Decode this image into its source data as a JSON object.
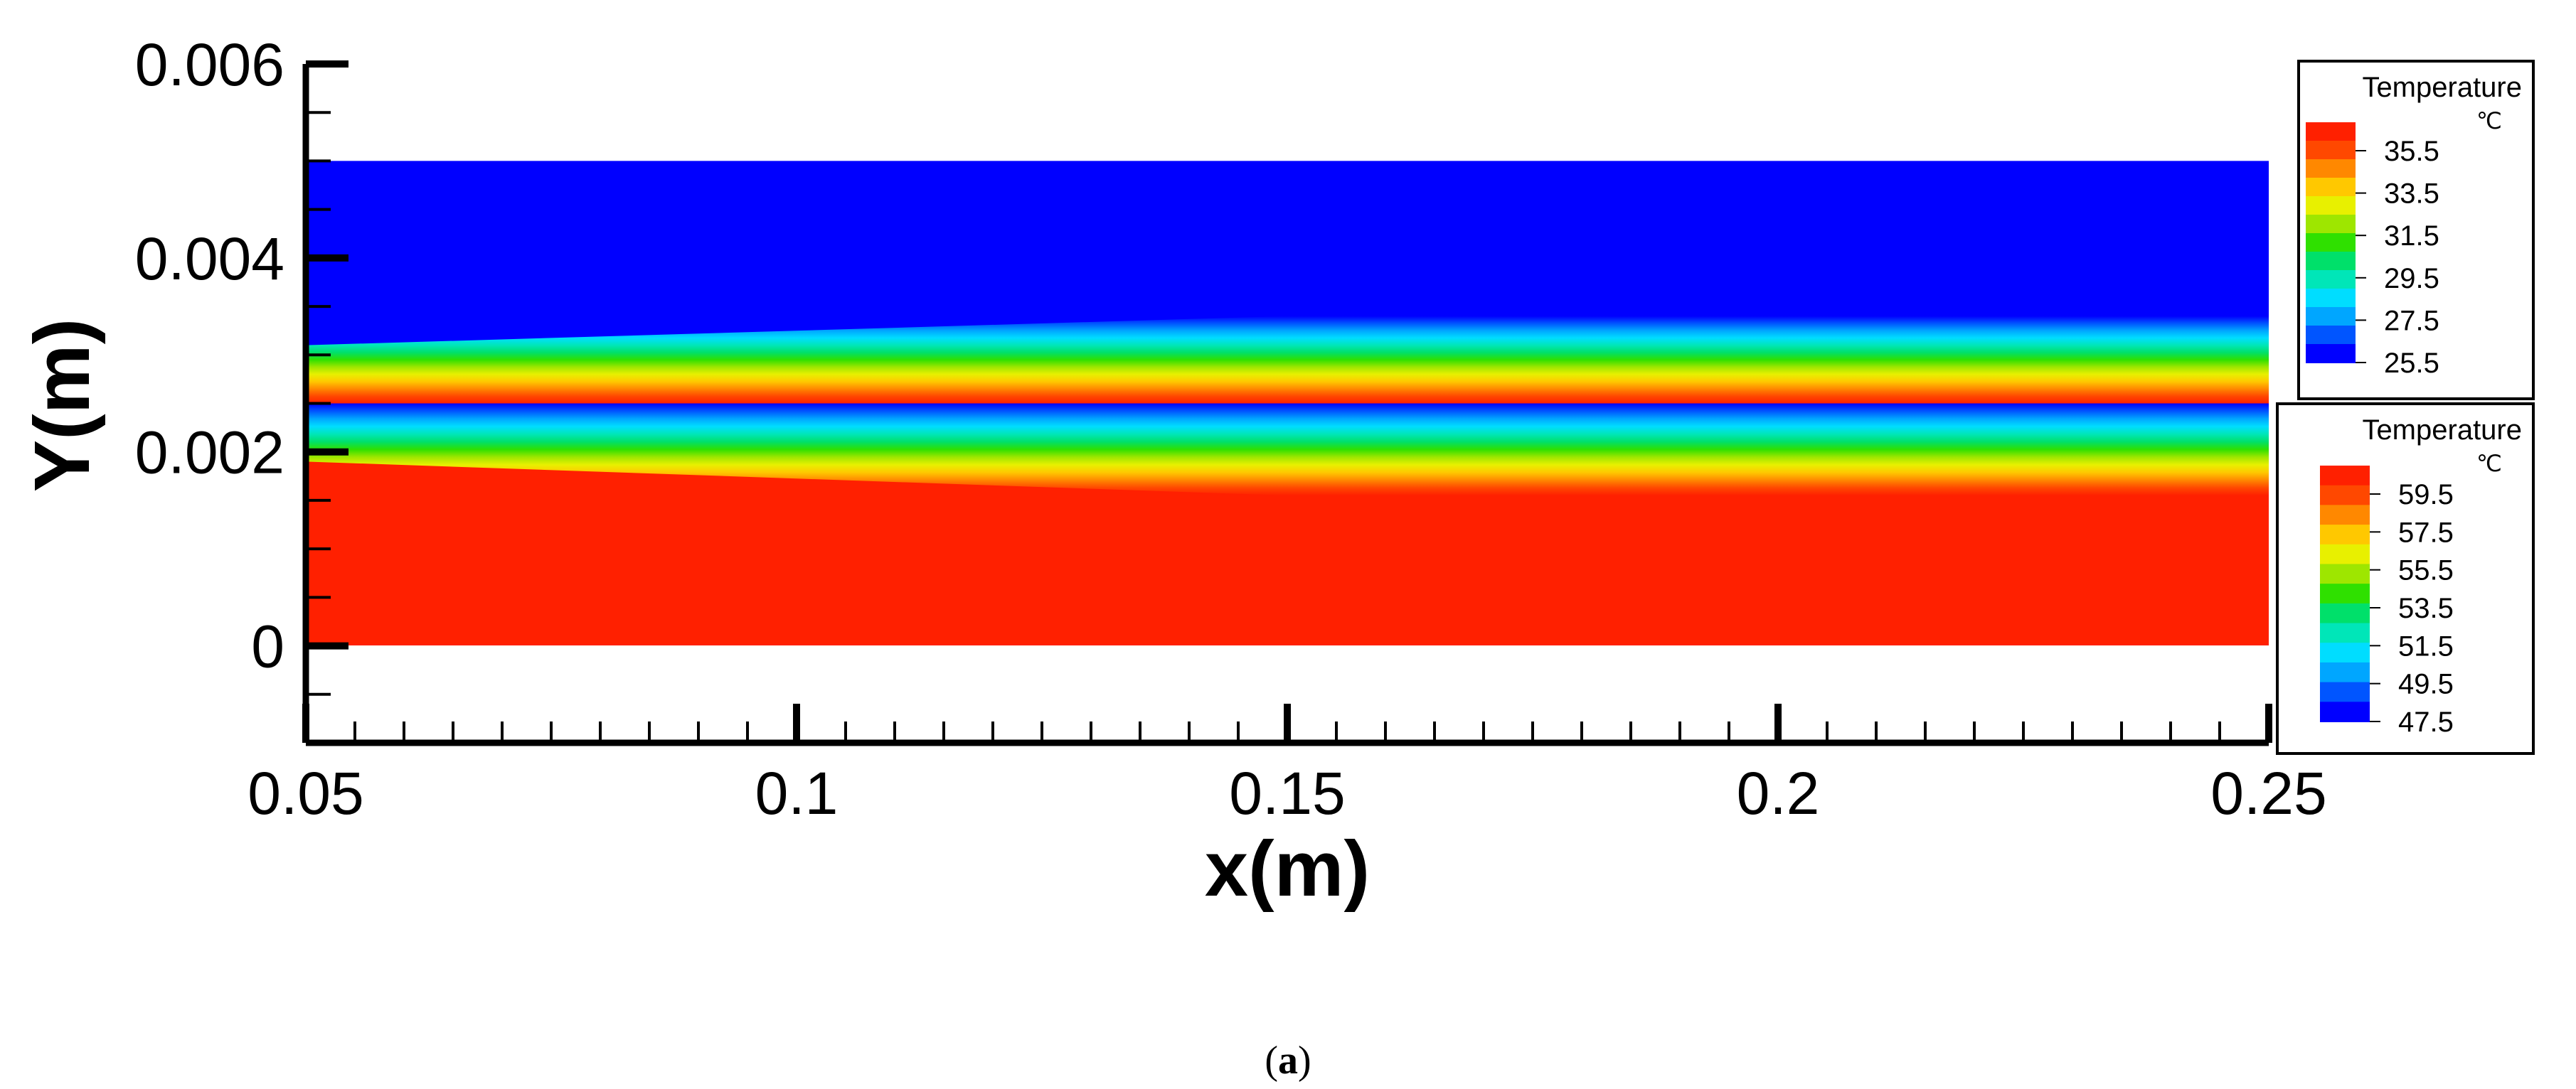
{
  "chart_data": {
    "type": "heatmap",
    "title": "",
    "xlabel": "x(m)",
    "ylabel": "Y(m)",
    "xlim": [
      0.05,
      0.25
    ],
    "ylim": [
      -0.001,
      0.006
    ],
    "x_ticks": [
      "0.05",
      "0.1",
      "0.15",
      "0.2",
      "0.25"
    ],
    "x_tick_values": [
      0.05,
      0.1,
      0.15,
      0.2,
      0.25
    ],
    "y_ticks": [
      "0",
      "0.002",
      "0.004",
      "0.006"
    ],
    "y_tick_values": [
      0,
      0.002,
      0.004,
      0.006
    ],
    "domain": {
      "x": [
        0.05,
        0.25
      ],
      "y": [
        0,
        0.005
      ]
    },
    "interface_y": 0.0025,
    "upper_region": {
      "temperature_at_interface_C": 37.5,
      "bottom_temperature_C": 25.5,
      "thermal_boundary_edge_y_at_x": [
        [
          0.05,
          0.0031
        ],
        [
          0.25,
          0.0037
        ]
      ]
    },
    "lower_region": {
      "temperature_at_interface_C": 47.5,
      "bottom_temperature_C": 61.5,
      "thermal_boundary_edge_y_at_x": [
        [
          0.05,
          0.0019
        ],
        [
          0.25,
          0.0012
        ]
      ]
    },
    "legends": [
      {
        "title": "Temperature",
        "unit": "℃",
        "labels": [
          "35.5",
          "33.5",
          "31.5",
          "29.5",
          "27.5",
          "25.5"
        ],
        "range": [
          25.5,
          37.5
        ]
      },
      {
        "title": "Temperature",
        "unit": "℃",
        "labels": [
          "59.5",
          "57.5",
          "55.5",
          "53.5",
          "51.5",
          "49.5",
          "47.5"
        ],
        "range": [
          47.5,
          61.5
        ]
      }
    ]
  },
  "colormap": [
    "#0000ff",
    "#0055ff",
    "#00a6ff",
    "#00ddff",
    "#00e6b8",
    "#00e06a",
    "#2fe000",
    "#9ee600",
    "#e8f000",
    "#ffc800",
    "#ff8800",
    "#ff4800",
    "#ff2000"
  ],
  "caption": {
    "open": "(",
    "letter": "a",
    "close": ")"
  }
}
